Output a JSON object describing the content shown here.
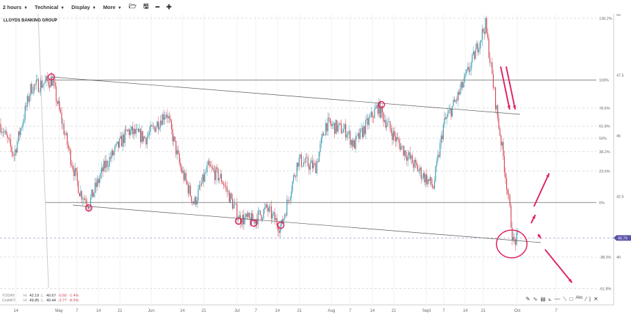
{
  "toolbar": {
    "interval": "2 hours",
    "technical": "Technical",
    "display": "Display",
    "more": "More"
  },
  "title": "LLOYDS BANKING GROUP",
  "stats": {
    "today_label": "TODAY:",
    "today_h": "42.19",
    "today_l": "40.67",
    "today_chg": "-0.60",
    "today_pct": "-1.4%",
    "chart_label": "CHART:",
    "chart_h": "49.85",
    "chart_l": "40.44",
    "chart_chg": "-3.77",
    "chart_pct": "-8.5%",
    "h": "H:",
    "l": "L:"
  },
  "price_axis": {
    "ticks": [
      "50",
      "47.5",
      "45",
      "42.5",
      "40"
    ],
    "tick_values": [
      50,
      47.5,
      45,
      42.5,
      40
    ],
    "current": "40.79",
    "current_value": 40.79,
    "current_color": "#5b52a8"
  },
  "fib_levels": [
    {
      "label": "138.2%",
      "value": 49.85
    },
    {
      "label": "100%",
      "value": 47.3
    },
    {
      "label": "78.6%",
      "value": 46.15
    },
    {
      "label": "61.8%",
      "value": 45.4
    },
    {
      "label": "50%",
      "value": 44.9
    },
    {
      "label": "38.2%",
      "value": 44.35
    },
    {
      "label": "23.6%",
      "value": 43.55
    },
    {
      "label": "0%",
      "value": 42.25
    },
    {
      "label": "-38.2%",
      "value": 40.0
    },
    {
      "label": "-61.8%",
      "value": 38.7
    }
  ],
  "time_axis": [
    {
      "label": "14",
      "major": false
    },
    {
      "label": "May",
      "major": true
    },
    {
      "label": "7",
      "major": false
    },
    {
      "label": "14",
      "major": false
    },
    {
      "label": "21",
      "major": false
    },
    {
      "label": "Jun",
      "major": true
    },
    {
      "label": "14",
      "major": false
    },
    {
      "label": "21",
      "major": false
    },
    {
      "label": "Jul",
      "major": true
    },
    {
      "label": "7",
      "major": false
    },
    {
      "label": "14",
      "major": false
    },
    {
      "label": "21",
      "major": false
    },
    {
      "label": "Aug",
      "major": true
    },
    {
      "label": "7",
      "major": false
    },
    {
      "label": "14",
      "major": false
    },
    {
      "label": "21",
      "major": false
    },
    {
      "label": "Sept",
      "major": true
    },
    {
      "label": "7",
      "major": false
    },
    {
      "label": "14",
      "major": false
    },
    {
      "label": "21",
      "major": false
    },
    {
      "label": "Oct",
      "major": true
    },
    {
      "label": "7",
      "major": false
    }
  ],
  "price_path": [
    45.5,
    44.2,
    47.0,
    47.3,
    44.3,
    42.7,
    42.2,
    43.7,
    45.2,
    44.9,
    46.0,
    43.7,
    42.2,
    43.7,
    43.2,
    41.6,
    41.5,
    42.0,
    41.2,
    44.0,
    43.7,
    45.5,
    45.2,
    44.6,
    46.2,
    44.9,
    43.7,
    42.9,
    45.5,
    46.6,
    48.0,
    49.6,
    46.3,
    44.3,
    42.0,
    40.6,
    40.8
  ],
  "colors": {
    "up": "#3a9bb0",
    "down": "#d2454f",
    "annotation": "#e0245e"
  },
  "drawing_tools": [
    "pencil",
    "curve",
    "fib",
    "fan",
    "hline",
    "trendline",
    "rectangle",
    "text",
    "line",
    "separator",
    "close"
  ]
}
